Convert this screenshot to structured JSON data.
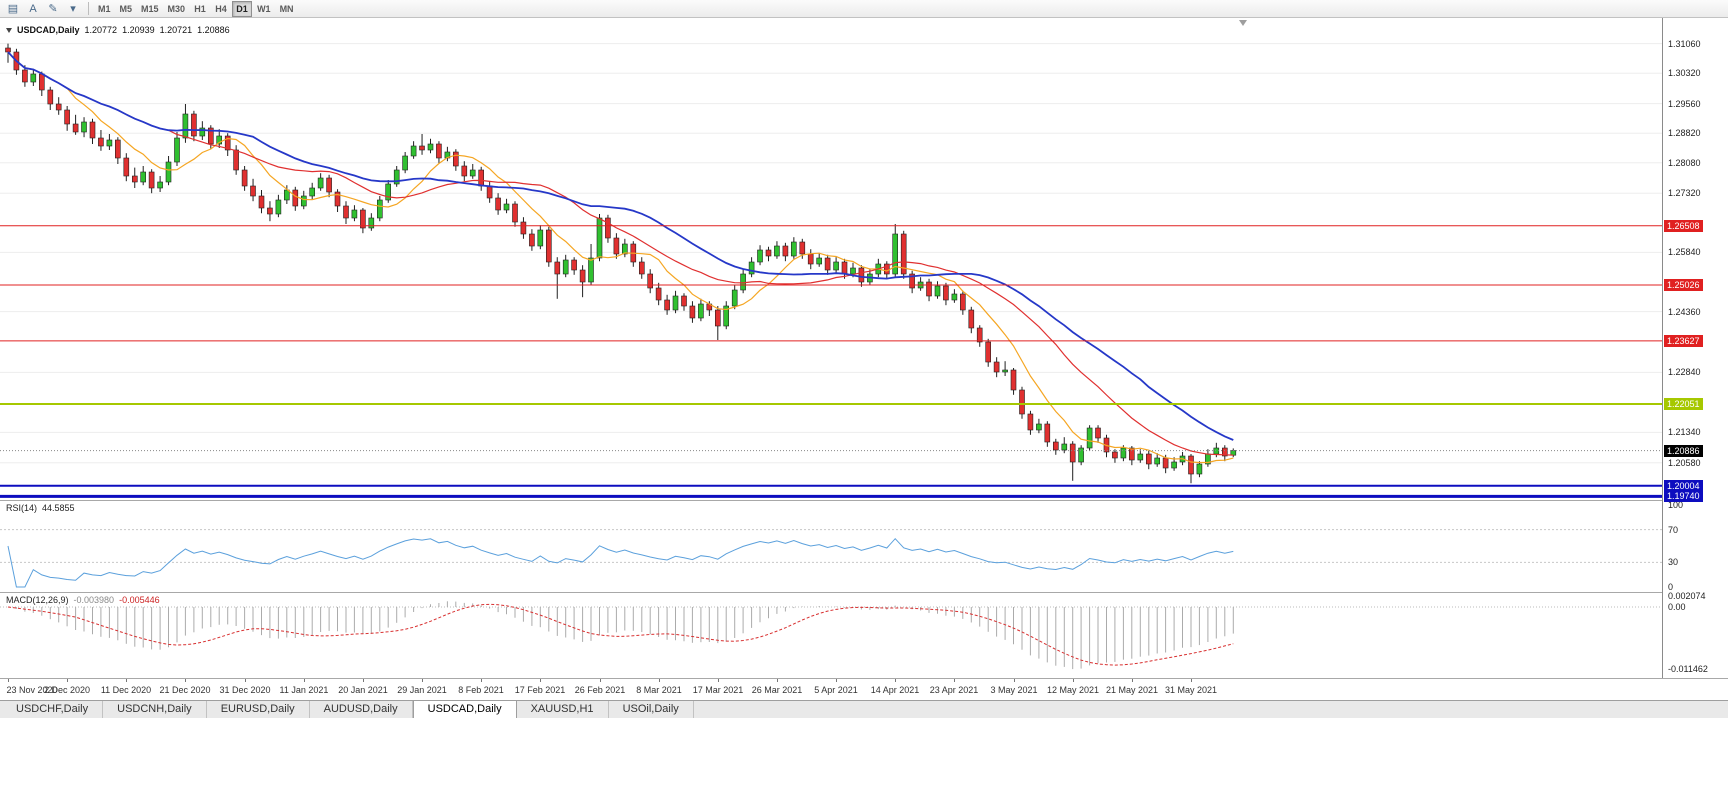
{
  "toolbar": {
    "icons": [
      {
        "name": "charts-list-icon",
        "glyph": "▤"
      },
      {
        "name": "text-tool-icon",
        "glyph": "A"
      },
      {
        "name": "draw-tool-icon",
        "glyph": "✎"
      },
      {
        "name": "tool-dropdown-icon",
        "glyph": "▾"
      }
    ],
    "timeframes": [
      {
        "label": "M1"
      },
      {
        "label": "M5"
      },
      {
        "label": "M15"
      },
      {
        "label": "M30"
      },
      {
        "label": "H1"
      },
      {
        "label": "H4"
      },
      {
        "label": "D1"
      },
      {
        "label": "W1"
      },
      {
        "label": "MN"
      }
    ],
    "active_timeframe": "D1"
  },
  "chart": {
    "title": "USDCAD,Daily",
    "ohlc": {
      "open": "1.20772",
      "high": "1.20939",
      "low": "1.20721",
      "close": "1.20886"
    }
  },
  "indicators": {
    "rsi": {
      "label": "RSI(14)",
      "value": "44.5855",
      "axis": [
        {
          "label": "100",
          "value": 100
        },
        {
          "label": "70",
          "value": 70
        },
        {
          "label": "30",
          "value": 30
        },
        {
          "label": "0",
          "value": 0
        }
      ],
      "levels": [
        70,
        30
      ]
    },
    "macd": {
      "label": "MACD(12,26,9)",
      "value": "-0.003980",
      "signal_value": "-0.005446",
      "axis": [
        {
          "label": "0.002074",
          "value": 0.002074
        },
        {
          "label": "0.00",
          "value": 0
        },
        {
          "label": "-0.011462",
          "value": -0.011462
        }
      ]
    }
  },
  "tabs": {
    "items": [
      {
        "label": "USDCHF,Daily"
      },
      {
        "label": "USDCNH,Daily"
      },
      {
        "label": "EURUSD,Daily"
      },
      {
        "label": "AUDUSD,Daily"
      },
      {
        "label": "USDCAD,Daily"
      },
      {
        "label": "XAUUSD,H1"
      },
      {
        "label": "USOil,Daily"
      }
    ],
    "active_index": 4
  },
  "chart_data": {
    "type": "candlestick",
    "symbol": "USDCAD",
    "timeframe": "Daily",
    "price_range": {
      "top": 1.317,
      "bottom": 1.1965
    },
    "y_axis_labels": [
      1.3106,
      1.3032,
      1.2956,
      1.2882,
      1.2808,
      1.2732,
      1.2584,
      1.2436,
      1.2284,
      1.2134,
      1.2058
    ],
    "levels": [
      {
        "label": "1.26508",
        "price": 1.26508,
        "color": "#e02020",
        "width": 1
      },
      {
        "label": "1.25026",
        "price": 1.25026,
        "color": "#e02020",
        "width": 1
      },
      {
        "label": "1.23627",
        "price": 1.23627,
        "color": "#e02020",
        "width": 1
      },
      {
        "label": "1.22051",
        "price": 1.22051,
        "color": "#a6c800",
        "width": 2
      },
      {
        "label": "1.20004",
        "price": 1.20004,
        "color": "#0d0dbf",
        "width": 2
      },
      {
        "label": "1.19740",
        "price": 1.1974,
        "color": "#0d0dbf",
        "width": 3
      }
    ],
    "current_price": {
      "label": "1.20886",
      "value": 1.20886,
      "badge_bg": "#000000"
    },
    "x_label_step": 7,
    "x_labels": [
      "23 Nov 2020",
      "2 Dec 2020",
      "11 Dec 2020",
      "21 Dec 2020",
      "31 Dec 2020",
      "11 Jan 2021",
      "20 Jan 2021",
      "29 Jan 2021",
      "8 Feb 2021",
      "17 Feb 2021",
      "26 Feb 2021",
      "8 Mar 2021",
      "17 Mar 2021",
      "26 Mar 2021",
      "5 Apr 2021",
      "14 Apr 2021",
      "23 Apr 2021",
      "3 May 2021",
      "12 May 2021",
      "21 May 2021",
      "31 May 2021"
    ],
    "moving_averages": [
      {
        "name": "fast",
        "period": 8,
        "color": "#f5a623",
        "width": 1.2
      },
      {
        "name": "mid",
        "period": 20,
        "color": "#e03030",
        "width": 1.2
      },
      {
        "name": "slow",
        "period": 30,
        "color": "#2638c8",
        "width": 1.8
      }
    ],
    "rsi_period": 14,
    "macd_params": {
      "fast": 12,
      "slow": 26,
      "signal": 9
    },
    "macd_range": {
      "max": 0.002074,
      "min": -0.011462
    },
    "colors": {
      "bull": "#30c030",
      "bear": "#e03030",
      "wick": "#202020",
      "grid": "#ededed",
      "rsi_line": "#5ba0dc",
      "rsi_grid": "#c8c8c8",
      "macd_hist": "#ababab",
      "macd_signal": "#d83030"
    },
    "candles": [
      [
        1.3095,
        1.3106,
        1.3058,
        1.3085
      ],
      [
        1.3085,
        1.3093,
        1.3028,
        1.304
      ],
      [
        1.304,
        1.3052,
        1.2998,
        1.301
      ],
      [
        1.301,
        1.3042,
        1.3,
        1.303
      ],
      [
        1.303,
        1.3036,
        1.2975,
        1.299
      ],
      [
        1.299,
        1.2998,
        1.294,
        1.2955
      ],
      [
        1.2955,
        1.2972,
        1.2928,
        1.294
      ],
      [
        1.294,
        1.295,
        1.2888,
        1.2905
      ],
      [
        1.2905,
        1.2928,
        1.2878,
        1.2885
      ],
      [
        1.2885,
        1.2922,
        1.2872,
        1.291
      ],
      [
        1.291,
        1.2918,
        1.2855,
        1.287
      ],
      [
        1.287,
        1.289,
        1.2838,
        1.285
      ],
      [
        1.285,
        1.288,
        1.284,
        1.2865
      ],
      [
        1.2865,
        1.2872,
        1.2805,
        1.282
      ],
      [
        1.282,
        1.2832,
        1.2762,
        1.2775
      ],
      [
        1.2775,
        1.2796,
        1.2745,
        1.276
      ],
      [
        1.276,
        1.28,
        1.2752,
        1.2785
      ],
      [
        1.2785,
        1.2792,
        1.2732,
        1.2745
      ],
      [
        1.2745,
        1.2775,
        1.2735,
        1.276
      ],
      [
        1.276,
        1.2825,
        1.2752,
        1.281
      ],
      [
        1.281,
        1.2885,
        1.28,
        1.287
      ],
      [
        1.287,
        1.2955,
        1.2858,
        1.293
      ],
      [
        1.293,
        1.2938,
        1.2862,
        1.2875
      ],
      [
        1.2875,
        1.2912,
        1.2865,
        1.2895
      ],
      [
        1.2895,
        1.2902,
        1.2842,
        1.2855
      ],
      [
        1.2855,
        1.2892,
        1.2845,
        1.2875
      ],
      [
        1.2875,
        1.2882,
        1.2825,
        1.284
      ],
      [
        1.284,
        1.2852,
        1.2778,
        1.279
      ],
      [
        1.279,
        1.28,
        1.2738,
        1.275
      ],
      [
        1.275,
        1.2768,
        1.2712,
        1.2725
      ],
      [
        1.2725,
        1.274,
        1.2682,
        1.2695
      ],
      [
        1.2695,
        1.2712,
        1.2662,
        1.268
      ],
      [
        1.268,
        1.2728,
        1.2672,
        1.2715
      ],
      [
        1.2715,
        1.2752,
        1.2705,
        1.274
      ],
      [
        1.274,
        1.2748,
        1.2688,
        1.27
      ],
      [
        1.27,
        1.2738,
        1.2692,
        1.2725
      ],
      [
        1.2725,
        1.2758,
        1.2715,
        1.2745
      ],
      [
        1.2745,
        1.2782,
        1.2738,
        1.277
      ],
      [
        1.277,
        1.2778,
        1.2722,
        1.2735
      ],
      [
        1.2735,
        1.2742,
        1.2685,
        1.27
      ],
      [
        1.27,
        1.2712,
        1.2655,
        1.267
      ],
      [
        1.267,
        1.2702,
        1.2662,
        1.269
      ],
      [
        1.269,
        1.2695,
        1.2632,
        1.2645
      ],
      [
        1.2645,
        1.2682,
        1.2638,
        1.267
      ],
      [
        1.267,
        1.2725,
        1.2662,
        1.2715
      ],
      [
        1.2715,
        1.2765,
        1.2708,
        1.2755
      ],
      [
        1.2755,
        1.28,
        1.2748,
        1.279
      ],
      [
        1.279,
        1.2835,
        1.2782,
        1.2825
      ],
      [
        1.2825,
        1.2862,
        1.2818,
        1.285
      ],
      [
        1.285,
        1.288,
        1.2828,
        1.284
      ],
      [
        1.284,
        1.2868,
        1.2832,
        1.2855
      ],
      [
        1.2855,
        1.2862,
        1.2805,
        1.282
      ],
      [
        1.282,
        1.2848,
        1.2812,
        1.2835
      ],
      [
        1.2835,
        1.2842,
        1.2788,
        1.28
      ],
      [
        1.28,
        1.2812,
        1.2762,
        1.2775
      ],
      [
        1.2775,
        1.2805,
        1.2768,
        1.279
      ],
      [
        1.279,
        1.2798,
        1.2738,
        1.275
      ],
      [
        1.275,
        1.2762,
        1.2708,
        1.272
      ],
      [
        1.272,
        1.2732,
        1.2678,
        1.269
      ],
      [
        1.269,
        1.2718,
        1.2682,
        1.2705
      ],
      [
        1.2705,
        1.2712,
        1.2648,
        1.266
      ],
      [
        1.266,
        1.2672,
        1.2618,
        1.263
      ],
      [
        1.263,
        1.2642,
        1.2588,
        1.26
      ],
      [
        1.26,
        1.2652,
        1.2592,
        1.264
      ],
      [
        1.264,
        1.2648,
        1.2548,
        1.256
      ],
      [
        1.256,
        1.2572,
        1.2468,
        1.253
      ],
      [
        1.253,
        1.2578,
        1.2522,
        1.2565
      ],
      [
        1.2565,
        1.2572,
        1.2528,
        1.254
      ],
      [
        1.254,
        1.2552,
        1.2472,
        1.251
      ],
      [
        1.251,
        1.2605,
        1.2502,
        1.257
      ],
      [
        1.257,
        1.268,
        1.2562,
        1.267
      ],
      [
        1.267,
        1.2678,
        1.2608,
        1.262
      ],
      [
        1.262,
        1.2632,
        1.2568,
        1.258
      ],
      [
        1.258,
        1.2618,
        1.2572,
        1.2605
      ],
      [
        1.2605,
        1.2612,
        1.2548,
        1.256
      ],
      [
        1.256,
        1.2572,
        1.2518,
        1.253
      ],
      [
        1.253,
        1.2542,
        1.2482,
        1.2495
      ],
      [
        1.2495,
        1.2508,
        1.2452,
        1.2465
      ],
      [
        1.2465,
        1.2478,
        1.2428,
        1.244
      ],
      [
        1.244,
        1.2488,
        1.2432,
        1.2475
      ],
      [
        1.2475,
        1.2482,
        1.2438,
        1.245
      ],
      [
        1.245,
        1.2462,
        1.2408,
        1.242
      ],
      [
        1.242,
        1.2468,
        1.2412,
        1.2455
      ],
      [
        1.2455,
        1.2462,
        1.2425,
        1.244
      ],
      [
        1.244,
        1.245,
        1.2365,
        1.24
      ],
      [
        1.24,
        1.2462,
        1.2392,
        1.245
      ],
      [
        1.245,
        1.2502,
        1.2442,
        1.249
      ],
      [
        1.249,
        1.2542,
        1.2482,
        1.253
      ],
      [
        1.253,
        1.2572,
        1.2522,
        1.256
      ],
      [
        1.256,
        1.2602,
        1.2552,
        1.259
      ],
      [
        1.259,
        1.2598,
        1.2562,
        1.2575
      ],
      [
        1.2575,
        1.2612,
        1.2568,
        1.26
      ],
      [
        1.26,
        1.2608,
        1.2562,
        1.2575
      ],
      [
        1.2575,
        1.2622,
        1.2568,
        1.261
      ],
      [
        1.261,
        1.2618,
        1.2568,
        1.258
      ],
      [
        1.258,
        1.2592,
        1.2542,
        1.2555
      ],
      [
        1.2555,
        1.2582,
        1.2548,
        1.257
      ],
      [
        1.257,
        1.2578,
        1.2528,
        1.254
      ],
      [
        1.254,
        1.2572,
        1.2532,
        1.256
      ],
      [
        1.256,
        1.2568,
        1.2518,
        1.253
      ],
      [
        1.253,
        1.2558,
        1.2522,
        1.2545
      ],
      [
        1.2545,
        1.2552,
        1.2498,
        1.251
      ],
      [
        1.251,
        1.2542,
        1.2502,
        1.253
      ],
      [
        1.253,
        1.2568,
        1.2522,
        1.2555
      ],
      [
        1.2555,
        1.2562,
        1.2518,
        1.253
      ],
      [
        1.253,
        1.2655,
        1.252,
        1.263
      ],
      [
        1.263,
        1.2638,
        1.2518,
        1.253
      ],
      [
        1.253,
        1.2538,
        1.2482,
        1.2495
      ],
      [
        1.2495,
        1.2522,
        1.2488,
        1.251
      ],
      [
        1.251,
        1.2518,
        1.2462,
        1.2475
      ],
      [
        1.2475,
        1.2512,
        1.2468,
        1.25
      ],
      [
        1.25,
        1.2508,
        1.2452,
        1.2465
      ],
      [
        1.2465,
        1.2492,
        1.2458,
        1.248
      ],
      [
        1.248,
        1.2488,
        1.2428,
        1.244
      ],
      [
        1.244,
        1.2448,
        1.2382,
        1.2395
      ],
      [
        1.2395,
        1.2402,
        1.2348,
        1.236
      ],
      [
        1.236,
        1.2368,
        1.2298,
        1.231
      ],
      [
        1.231,
        1.2322,
        1.2272,
        1.2285
      ],
      [
        1.2285,
        1.2312,
        1.2275,
        1.229
      ],
      [
        1.229,
        1.2295,
        1.2228,
        1.224
      ],
      [
        1.224,
        1.2248,
        1.2168,
        1.218
      ],
      [
        1.218,
        1.2188,
        1.2128,
        1.214
      ],
      [
        1.214,
        1.2168,
        1.2132,
        1.2155
      ],
      [
        1.2155,
        1.2162,
        1.2098,
        1.211
      ],
      [
        1.211,
        1.2118,
        1.2078,
        1.209
      ],
      [
        1.209,
        1.2122,
        1.2082,
        1.2105
      ],
      [
        1.2105,
        1.2112,
        1.2013,
        1.206
      ],
      [
        1.206,
        1.2102,
        1.2052,
        1.2095
      ],
      [
        1.2095,
        1.2152,
        1.2088,
        1.2145
      ],
      [
        1.2145,
        1.2152,
        1.2108,
        1.212
      ],
      [
        1.212,
        1.2128,
        1.2072,
        1.2085
      ],
      [
        1.2085,
        1.2092,
        1.2058,
        1.207
      ],
      [
        1.207,
        1.2102,
        1.2062,
        1.2095
      ],
      [
        1.2095,
        1.21,
        1.2052,
        1.2065
      ],
      [
        1.2065,
        1.2092,
        1.2058,
        1.208
      ],
      [
        1.208,
        1.2088,
        1.2042,
        1.2055
      ],
      [
        1.2055,
        1.2082,
        1.2048,
        1.207
      ],
      [
        1.207,
        1.2078,
        1.2032,
        1.2045
      ],
      [
        1.2045,
        1.2072,
        1.2038,
        1.206
      ],
      [
        1.206,
        1.2085,
        1.2052,
        1.2075
      ],
      [
        1.2075,
        1.208,
        1.2007,
        1.203
      ],
      [
        1.203,
        1.2062,
        1.2022,
        1.2055
      ],
      [
        1.2055,
        1.2092,
        1.2048,
        1.208
      ],
      [
        1.208,
        1.2108,
        1.2072,
        1.2095
      ],
      [
        1.2095,
        1.2102,
        1.2062,
        1.2075
      ],
      [
        1.20772,
        1.20939,
        1.20721,
        1.20886
      ]
    ]
  }
}
